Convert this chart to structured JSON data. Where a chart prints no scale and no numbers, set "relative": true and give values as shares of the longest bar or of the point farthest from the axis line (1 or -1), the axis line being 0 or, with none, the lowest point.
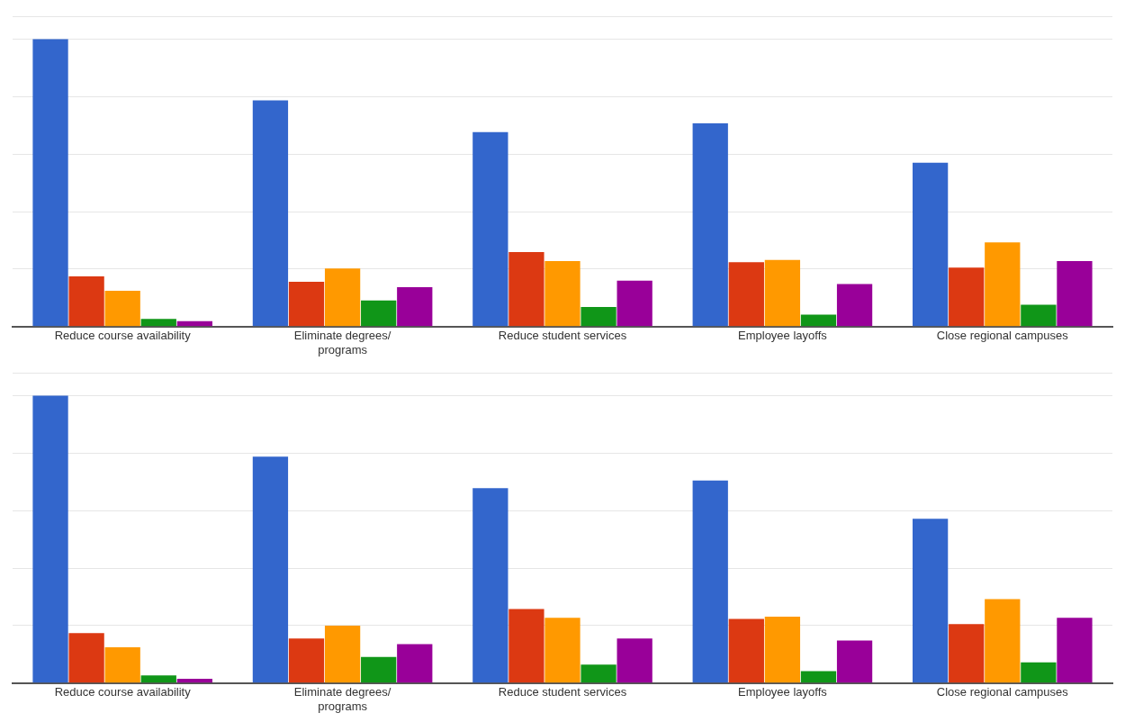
{
  "chart_data": [
    {
      "type": "bar",
      "relative": true,
      "grid": "y",
      "legend": false,
      "categories": [
        "Reduce course availability",
        "Eliminate degrees/ programs",
        "Reduce student services",
        "Employee layoffs",
        "Close regional campuses"
      ],
      "series": [
        {
          "color": "#3366cc",
          "values": [
            1.0,
            0.787,
            0.677,
            0.707,
            0.57
          ]
        },
        {
          "color": "#dc3912",
          "values": [
            0.175,
            0.156,
            0.259,
            0.224,
            0.205
          ]
        },
        {
          "color": "#ff9900",
          "values": [
            0.125,
            0.202,
            0.228,
            0.232,
            0.293
          ]
        },
        {
          "color": "#109618",
          "values": [
            0.027,
            0.091,
            0.068,
            0.042,
            0.076
          ]
        },
        {
          "color": "#990099",
          "values": [
            0.019,
            0.137,
            0.16,
            0.148,
            0.228
          ]
        }
      ]
    },
    {
      "type": "bar",
      "relative": true,
      "grid": "y",
      "legend": false,
      "categories": [
        "Reduce course availability",
        "Eliminate degrees/ programs",
        "Reduce student services",
        "Employee layoffs",
        "Close regional campuses"
      ],
      "series": [
        {
          "color": "#3366cc",
          "values": [
            1.0,
            0.788,
            0.678,
            0.705,
            0.572
          ]
        },
        {
          "color": "#dc3912",
          "values": [
            0.174,
            0.155,
            0.258,
            0.223,
            0.205
          ]
        },
        {
          "color": "#ff9900",
          "values": [
            0.125,
            0.2,
            0.227,
            0.231,
            0.292
          ]
        },
        {
          "color": "#109618",
          "values": [
            0.027,
            0.091,
            0.064,
            0.042,
            0.072
          ]
        },
        {
          "color": "#990099",
          "values": [
            0.015,
            0.136,
            0.155,
            0.148,
            0.227
          ]
        }
      ]
    }
  ]
}
